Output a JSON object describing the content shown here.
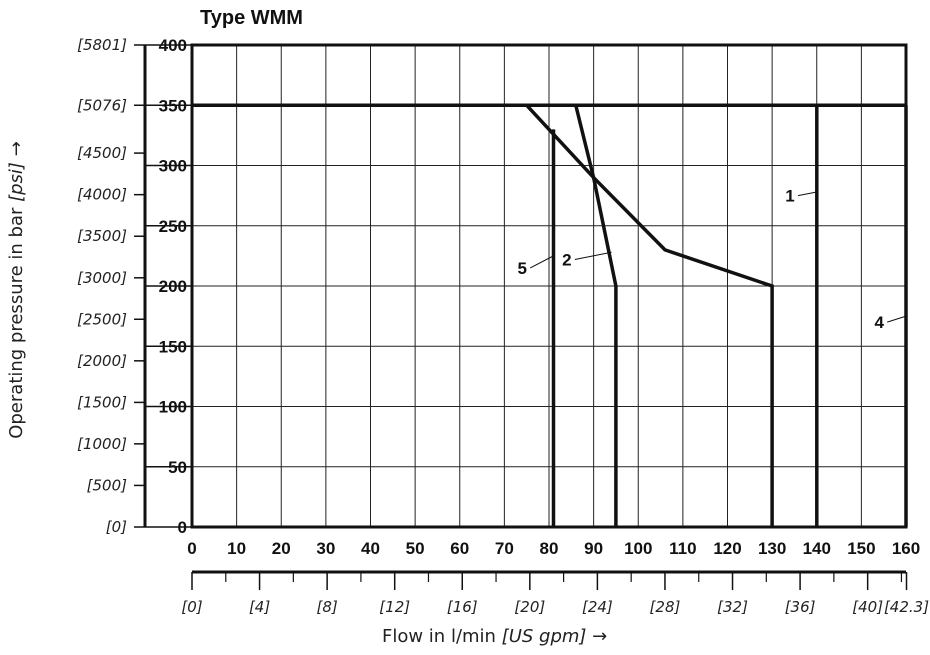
{
  "chart_data": {
    "type": "line",
    "title": "Type WMM",
    "xlabel_main": "Flow in l/min ",
    "xlabel_unit": "[US gpm]",
    "xlabel_arrow": " →",
    "ylabel_main": "Operating pressure in bar ",
    "ylabel_unit": "[psi]",
    "ylabel_arrow": " →",
    "xlim": [
      0,
      160
    ],
    "ylim": [
      0,
      400
    ],
    "x_ticks": [
      "0",
      "10",
      "20",
      "30",
      "40",
      "50",
      "60",
      "70",
      "80",
      "90",
      "100",
      "110",
      "120",
      "130",
      "140",
      "150",
      "160"
    ],
    "y_ticks": [
      "0",
      "50",
      "100",
      "150",
      "200",
      "250",
      "300",
      "350",
      "400"
    ],
    "psi_ticks": [
      {
        "bar": 0,
        "label": "[0]"
      },
      {
        "bar": 34.5,
        "label": "[500]"
      },
      {
        "bar": 69.0,
        "label": "[1000]"
      },
      {
        "bar": 103.4,
        "label": "[1500]"
      },
      {
        "bar": 137.9,
        "label": "[2000]"
      },
      {
        "bar": 172.4,
        "label": "[2500]"
      },
      {
        "bar": 206.8,
        "label": "[3000]"
      },
      {
        "bar": 241.3,
        "label": "[3500]"
      },
      {
        "bar": 275.8,
        "label": "[4000]"
      },
      {
        "bar": 310.3,
        "label": "[4500]"
      },
      {
        "bar": 350,
        "label": "[5076]"
      },
      {
        "bar": 400,
        "label": "[5801]"
      }
    ],
    "gpm_ticks": [
      {
        "gpm": 0,
        "label": "[0]"
      },
      {
        "gpm": 4,
        "label": "[4]"
      },
      {
        "gpm": 8,
        "label": "[8]"
      },
      {
        "gpm": 12,
        "label": "[12]"
      },
      {
        "gpm": 16,
        "label": "[16]"
      },
      {
        "gpm": 20,
        "label": "[20]"
      },
      {
        "gpm": 24,
        "label": "[24]"
      },
      {
        "gpm": 28,
        "label": "[28]"
      },
      {
        "gpm": 32,
        "label": "[32]"
      },
      {
        "gpm": 36,
        "label": "[36]"
      },
      {
        "gpm": 40,
        "label": "[40]"
      },
      {
        "gpm": 42.3,
        "label": "[42.3]"
      }
    ],
    "gpm_minor_ticks": [
      2,
      6,
      10,
      14,
      18,
      22,
      26,
      30,
      34,
      38,
      42
    ],
    "max_pressure_line": {
      "y": 350,
      "x": [
        0,
        160
      ]
    },
    "series": [
      {
        "name": "1",
        "x": [
          140,
          140
        ],
        "y": [
          0,
          350
        ]
      },
      {
        "name": "2",
        "x": [
          86,
          90,
          95,
          95
        ],
        "y": [
          350,
          290,
          200,
          0
        ]
      },
      {
        "name": "4",
        "x": [
          160,
          160
        ],
        "y": [
          0,
          350
        ]
      },
      {
        "name": "5",
        "x": [
          81,
          81
        ],
        "y": [
          0,
          330
        ]
      },
      {
        "name": "",
        "x": [
          75,
          90,
          106,
          130,
          130
        ],
        "y": [
          350,
          290,
          230,
          200,
          0
        ]
      }
    ],
    "curve_labels": [
      {
        "text": "1",
        "at": [
          134,
          275
        ],
        "leader_to": [
          140,
          278
        ]
      },
      {
        "text": "2",
        "at": [
          84,
          222
        ],
        "leader_to": [
          94,
          228
        ]
      },
      {
        "text": "4",
        "at": [
          154,
          170
        ],
        "leader_to": [
          160,
          175
        ]
      },
      {
        "text": "5",
        "at": [
          74,
          215
        ],
        "leader_to": [
          81,
          225
        ]
      }
    ],
    "grid": true
  }
}
